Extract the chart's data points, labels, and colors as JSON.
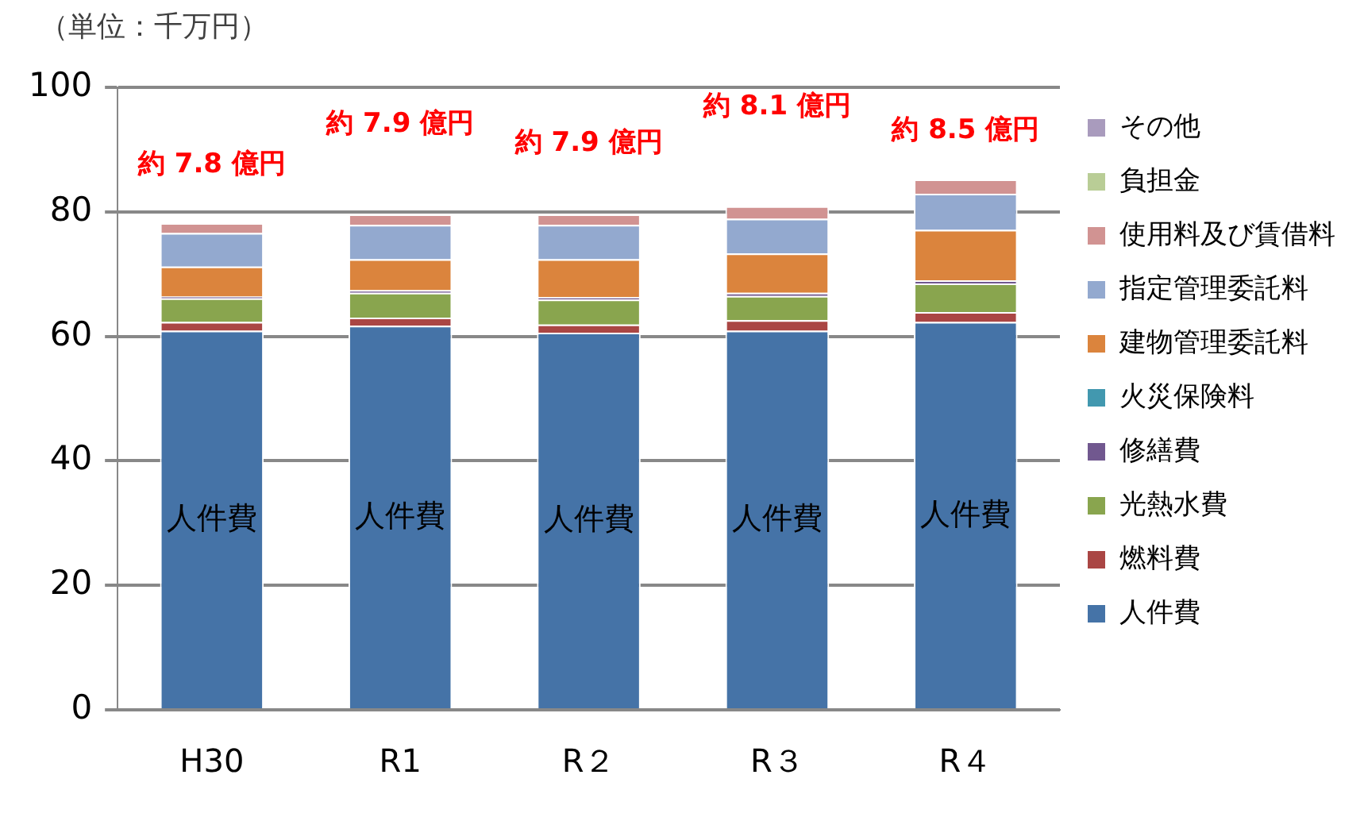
{
  "chart_data": {
    "type": "bar",
    "stacked": true,
    "ylabel": "（単位：千万円）",
    "categories": [
      "H30",
      "R1",
      "R２",
      "R３",
      "R４"
    ],
    "series": [
      {
        "name": "人件費",
        "color": "#4573a7",
        "values": [
          60.9,
          61.7,
          60.6,
          60.9,
          62.3
        ]
      },
      {
        "name": "燃料費",
        "color": "#aa4644",
        "values": [
          1.4,
          1.3,
          1.3,
          1.7,
          1.6
        ]
      },
      {
        "name": "光熱水費",
        "color": "#89a54e",
        "values": [
          3.8,
          4.0,
          4.0,
          3.9,
          4.6
        ]
      },
      {
        "name": "修繕費",
        "color": "#71588f",
        "values": [
          0.3,
          0.4,
          0.4,
          0.5,
          0.5
        ]
      },
      {
        "name": "火災保険料",
        "color": "#4298af",
        "values": [
          null,
          null,
          null,
          null,
          null
        ]
      },
      {
        "name": "建物管理委託料",
        "color": "#db843d",
        "values": [
          4.8,
          5.0,
          6.1,
          6.3,
          8.1
        ]
      },
      {
        "name": "指定管理委託料",
        "color": "#93a9cf",
        "values": [
          5.4,
          5.5,
          5.5,
          5.6,
          5.8
        ]
      },
      {
        "name": "使用料及び賃借料",
        "color": "#d19392",
        "values": [
          1.6,
          1.7,
          1.7,
          2.0,
          2.3
        ]
      },
      {
        "name": "負担金",
        "color": "#b9cd96",
        "values": [
          0,
          0,
          0,
          0,
          0
        ]
      },
      {
        "name": "その他",
        "color": "#a99bbd",
        "values": [
          0,
          0,
          0,
          0,
          0
        ]
      }
    ],
    "totals": [
      "約 7.8 億円",
      "約 7.9 億円",
      "約 7.9 億円",
      "約 8.1 億円",
      "約 8.5 億円"
    ],
    "annotations": [
      "人件費",
      "人件費",
      "人件費",
      "人件費",
      "人件費"
    ],
    "ylim": [
      0,
      100
    ],
    "yticks": [
      0,
      20,
      40,
      60,
      80,
      100
    ],
    "grid": "y",
    "legend": "right"
  }
}
